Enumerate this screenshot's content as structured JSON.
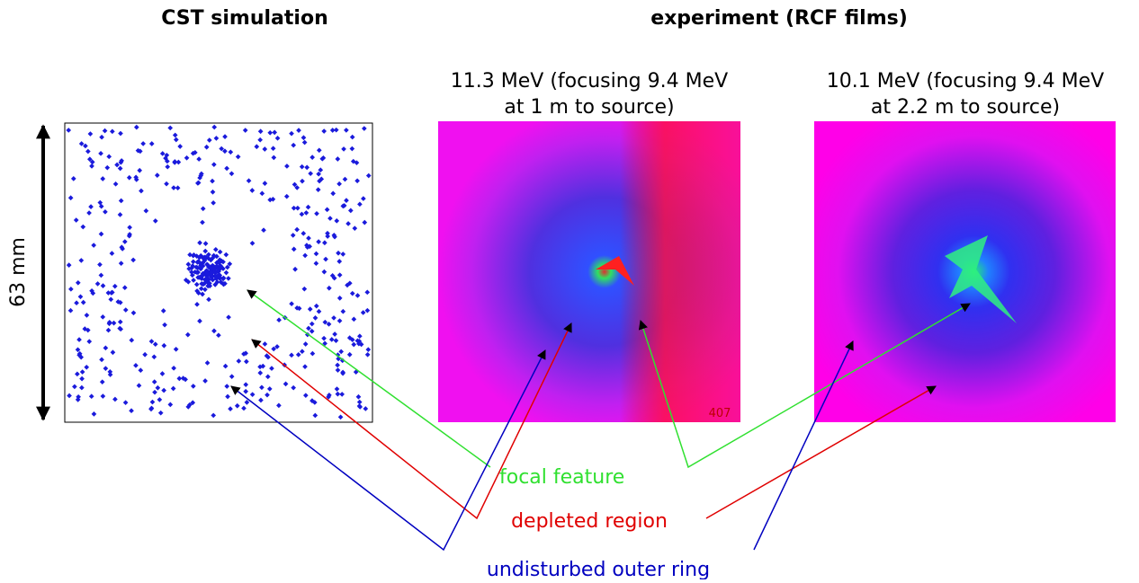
{
  "headings": {
    "simulation": "CST simulation",
    "experiment": "experiment (RCF films)"
  },
  "films": [
    {
      "title_line1": "11.3 MeV (focusing 9.4 MeV",
      "title_line2": "at 1 m to source)",
      "film_label": "407"
    },
    {
      "title_line1": "10.1 MeV (focusing 9.4 MeV",
      "title_line2": "at 2.2 m to source)"
    }
  ],
  "scale_label": "63 mm",
  "annotations": {
    "focal": "focal feature",
    "depleted": "depleted region",
    "outer": "undisturbed outer ring"
  }
}
